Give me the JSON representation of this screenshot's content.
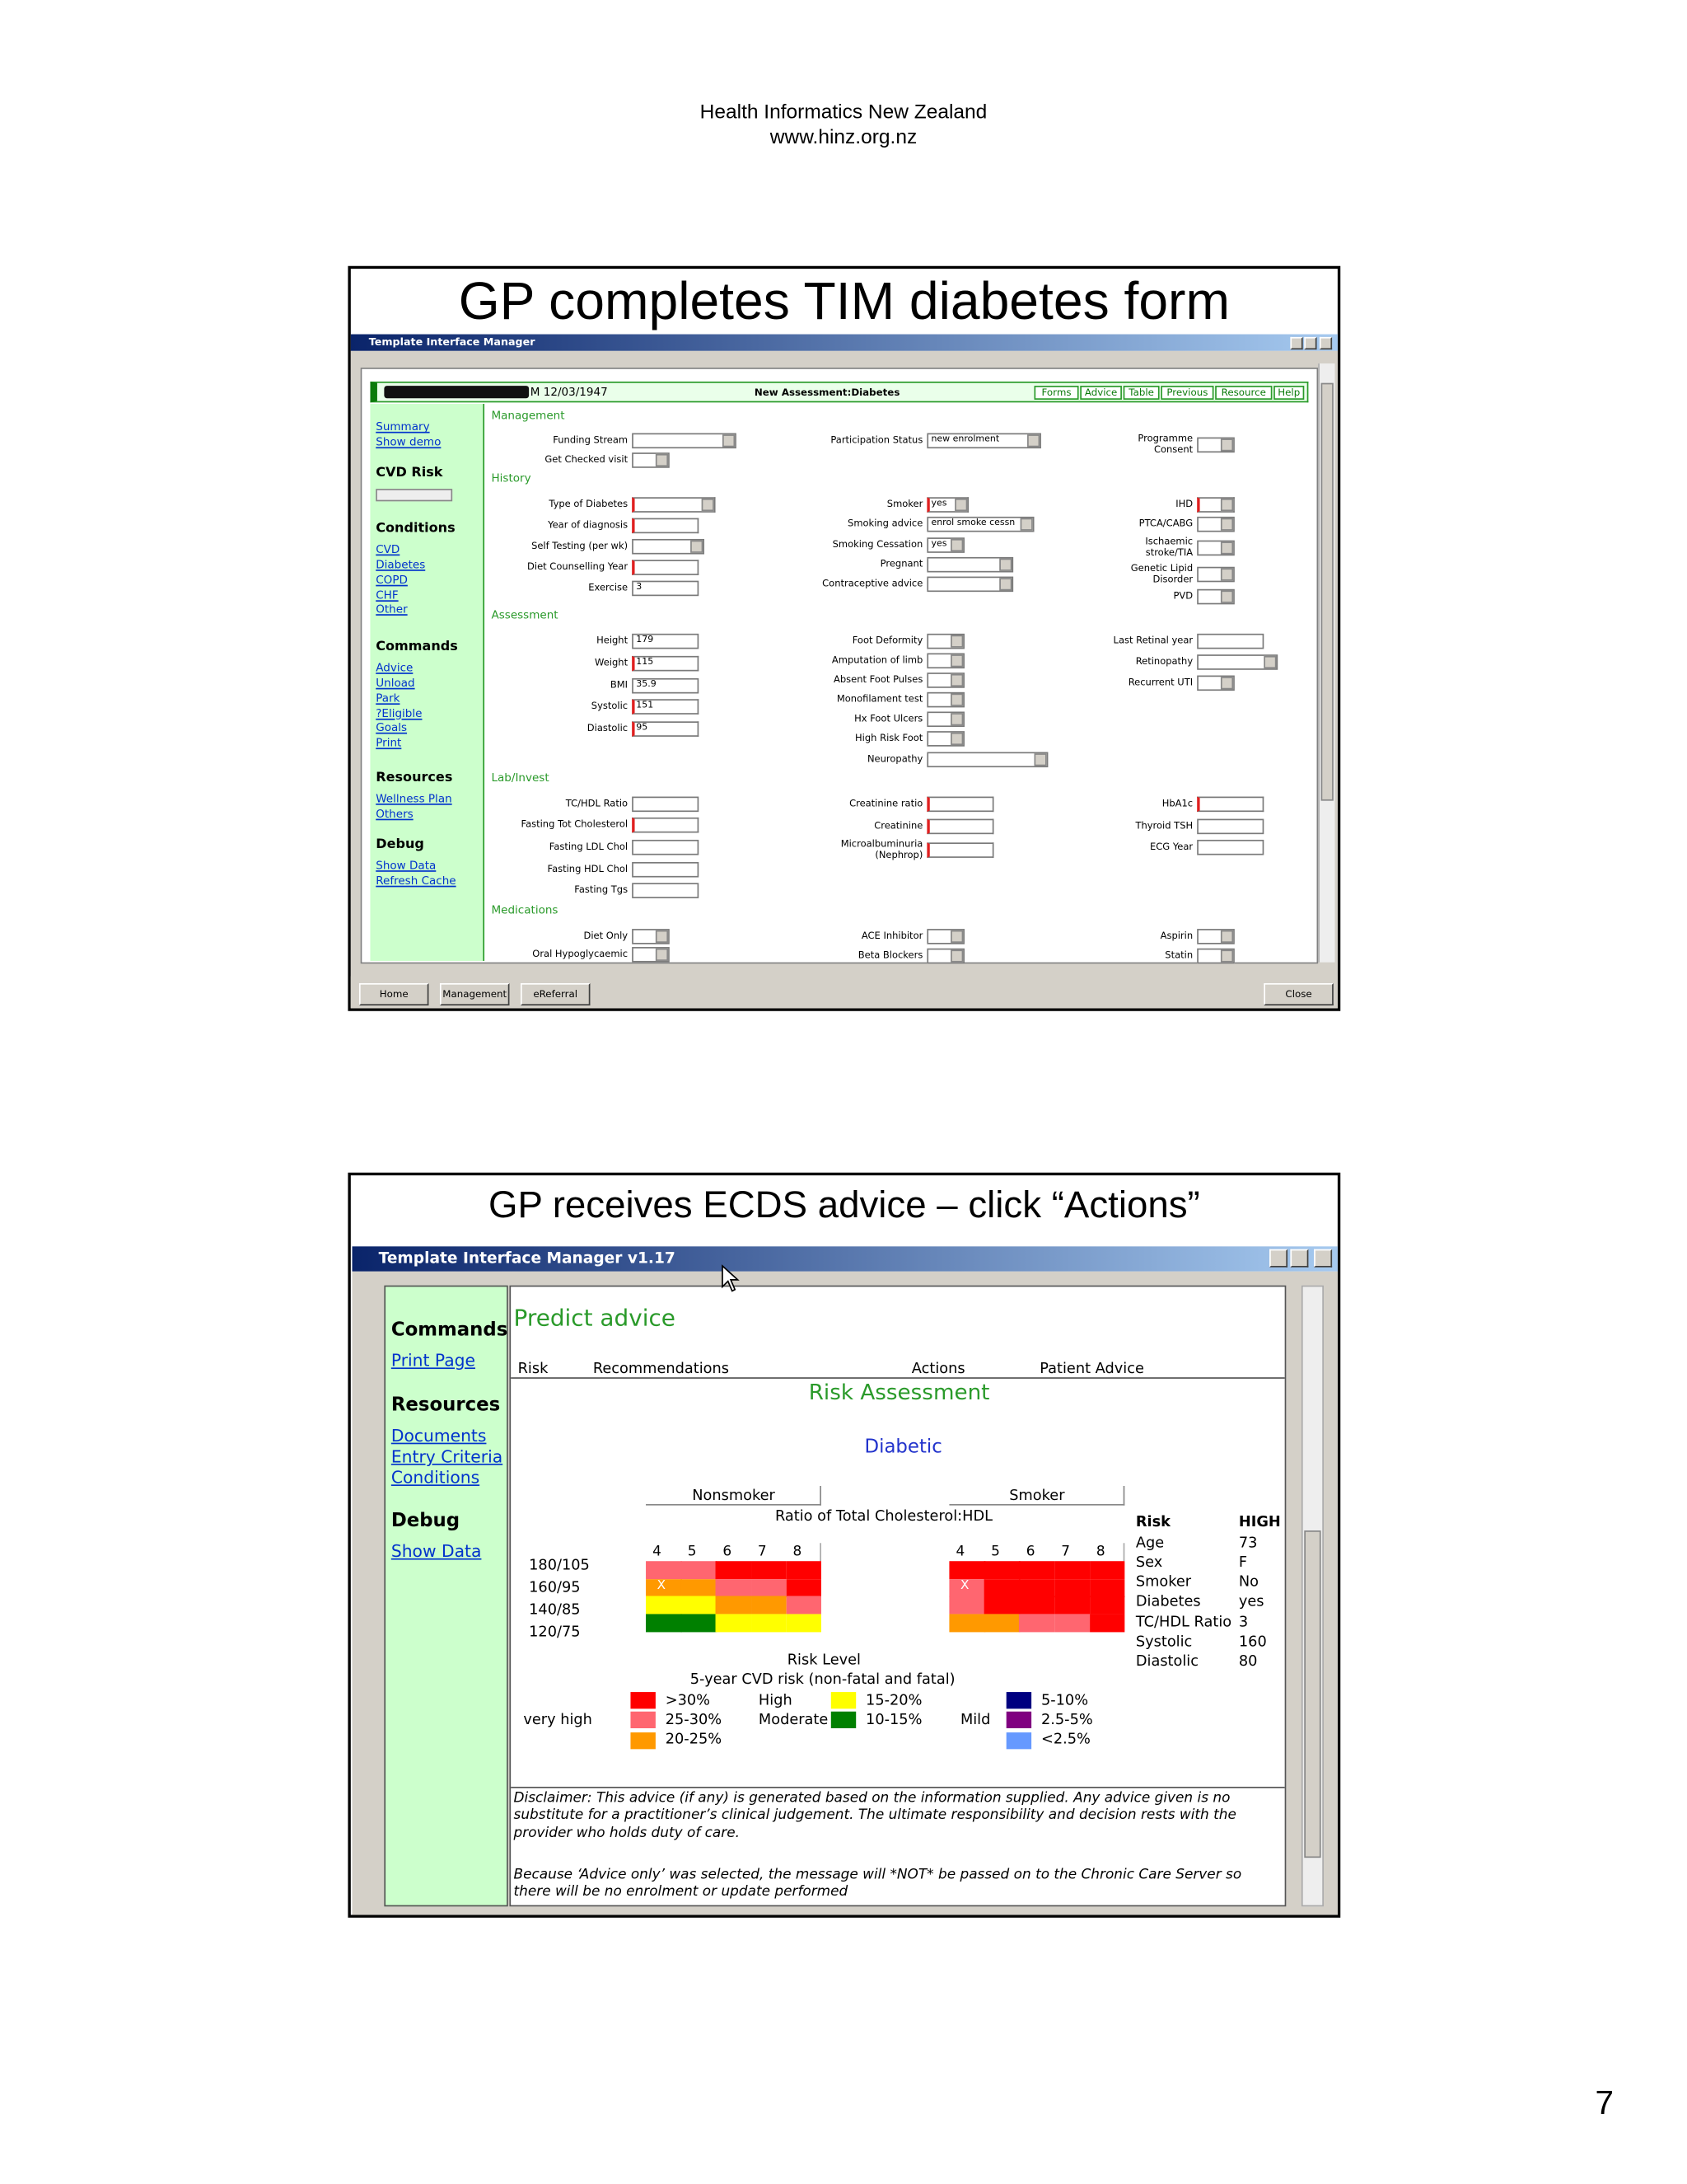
{
  "header": {
    "line1": "Health Informatics New Zealand",
    "line2": "www.hinz.org.nz"
  },
  "page_number": "7",
  "slide1": {
    "title": "GP completes TIM diabetes form",
    "window_title": "Template Interface Manager",
    "patient": "M 12/03/1947",
    "assessment": "New Assessment:Diabetes",
    "tabs": [
      "Forms",
      "Advice",
      "Table",
      "Previous",
      "Resource",
      "Help"
    ],
    "sidebar": {
      "links": [
        "Summary",
        "Show demo"
      ],
      "sections": [
        {
          "heading": "CVD Risk"
        },
        {
          "heading": "Conditions",
          "links": [
            "CVD",
            "Diabetes",
            "COPD",
            "CHF",
            "Other"
          ]
        },
        {
          "heading": "Commands",
          "links": [
            "Advice",
            "Unload",
            "Park",
            "?Eligible",
            "Goals",
            "Print"
          ]
        },
        {
          "heading": "Resources",
          "links": [
            "Wellness Plan",
            "Others"
          ]
        },
        {
          "heading": "Debug",
          "links": [
            "Show Data",
            "Refresh Cache"
          ]
        }
      ]
    },
    "sections": [
      {
        "title": "Management",
        "columns": [
          [
            {
              "label": "Funding Stream"
            },
            {
              "label": "Get Checked visit"
            }
          ],
          [
            {
              "label": "Participation Status",
              "value": "new enrolment"
            }
          ],
          [
            {
              "label": "Programme Consent"
            }
          ]
        ]
      },
      {
        "title": "History",
        "columns": [
          [
            {
              "label": "Type of Diabetes"
            },
            {
              "label": "Year of diagnosis"
            },
            {
              "label": "Self Testing (per wk)"
            },
            {
              "label": "Diet Counselling Year"
            },
            {
              "label": "Exercise",
              "value": "3"
            }
          ],
          [
            {
              "label": "Smoker",
              "value": "yes"
            },
            {
              "label": "Smoking advice",
              "value": "enrol smoke cessn"
            },
            {
              "label": "Smoking Cessation",
              "value": "yes"
            },
            {
              "label": "Pregnant"
            },
            {
              "label": "Contraceptive advice"
            }
          ],
          [
            {
              "label": "IHD"
            },
            {
              "label": "PTCA/CABG"
            },
            {
              "label": "Ischaemic stroke/TIA"
            },
            {
              "label": "Genetic Lipid Disorder"
            },
            {
              "label": "PVD"
            }
          ]
        ]
      },
      {
        "title": "Assessment",
        "columns": [
          [
            {
              "label": "Height",
              "value": "179"
            },
            {
              "label": "Weight",
              "value": "115"
            },
            {
              "label": "BMI",
              "value": "35.9"
            },
            {
              "label": "Systolic",
              "value": "151"
            },
            {
              "label": "Diastolic",
              "value": "95"
            }
          ],
          [
            {
              "label": "Foot Deformity"
            },
            {
              "label": "Amputation of limb"
            },
            {
              "label": "Absent Foot Pulses"
            },
            {
              "label": "Monofilament test"
            },
            {
              "label": "Hx Foot Ulcers"
            },
            {
              "label": "High Risk Foot"
            },
            {
              "label": "Neuropathy"
            }
          ],
          [
            {
              "label": "Last Retinal year"
            },
            {
              "label": "Retinopathy"
            },
            {
              "label": "Recurrent UTI"
            }
          ]
        ]
      },
      {
        "title": "Lab/Invest",
        "columns": [
          [
            {
              "label": "TC/HDL Ratio"
            },
            {
              "label": "Fasting Tot Cholesterol"
            },
            {
              "label": "Fasting LDL Chol"
            },
            {
              "label": "Fasting HDL Chol"
            },
            {
              "label": "Fasting Tgs"
            }
          ],
          [
            {
              "label": "Creatinine ratio"
            },
            {
              "label": "Creatinine"
            },
            {
              "label": "Microalbuminuria (Nephrop)"
            }
          ],
          [
            {
              "label": "HbA1c"
            },
            {
              "label": "Thyroid TSH"
            },
            {
              "label": "ECG Year"
            }
          ]
        ]
      },
      {
        "title": "Medications",
        "columns": [
          [
            {
              "label": "Diet Only"
            },
            {
              "label": "Oral Hypoglycaemic"
            }
          ],
          [
            {
              "label": "ACE Inhibitor"
            },
            {
              "label": "Beta Blockers"
            }
          ],
          [
            {
              "label": "Aspirin"
            },
            {
              "label": "Statin"
            }
          ]
        ]
      }
    ],
    "buttons": [
      "Home",
      "Management",
      "eReferral"
    ],
    "close": "Close"
  },
  "slide2": {
    "title": "GP receives ECDS advice – click “Actions”",
    "window_title": "Template Interface Manager v1.17",
    "sidebar": {
      "sections": [
        {
          "heading": "Commands",
          "links": [
            "Print Page"
          ]
        },
        {
          "heading": "Resources",
          "links": [
            "Documents",
            "Entry Criteria",
            "Conditions"
          ]
        },
        {
          "heading": "Debug",
          "links": [
            "Show Data"
          ]
        }
      ]
    },
    "heading": "Predict advice",
    "tabs": [
      "Risk",
      "Recommendations",
      "Actions",
      "Patient Advice"
    ],
    "section_title": "Risk Assessment",
    "subtitle": "Diabetic",
    "x_axis_label": "Ratio of Total Cholesterol:HDL",
    "x_ticks": [
      "4",
      "5",
      "6",
      "7",
      "8"
    ],
    "row_labels": [
      "180/105",
      "160/95",
      "140/85",
      "120/75"
    ],
    "marker_text": "X",
    "grids": [
      {
        "label": "Nonsmoker",
        "marked": [
          1,
          0
        ],
        "colors": [
          [
            "#ff6670",
            "#ff6670",
            "#ff0000",
            "#ff0000",
            "#ff0000"
          ],
          [
            "#ff9900",
            "#ff9900",
            "#ff6670",
            "#ff6670",
            "#ff0000"
          ],
          [
            "#ffff00",
            "#ffff00",
            "#ff9900",
            "#ff9900",
            "#ff6670"
          ],
          [
            "#008000",
            "#008000",
            "#ffff00",
            "#ffff00",
            "#ffff00"
          ]
        ]
      },
      {
        "label": "Smoker",
        "marked": [
          1,
          0
        ],
        "colors": [
          [
            "#ff0000",
            "#ff0000",
            "#ff0000",
            "#ff0000",
            "#ff0000"
          ],
          [
            "#ff6670",
            "#ff0000",
            "#ff0000",
            "#ff0000",
            "#ff0000"
          ],
          [
            "#ff6670",
            "#ff0000",
            "#ff0000",
            "#ff0000",
            "#ff0000"
          ],
          [
            "#ff9900",
            "#ff9900",
            "#ff6670",
            "#ff6670",
            "#ff0000"
          ]
        ]
      }
    ],
    "risk_table": [
      [
        "Risk",
        "HIGH"
      ],
      [
        "Age",
        "73"
      ],
      [
        "Sex",
        "F"
      ],
      [
        "Smoker",
        "No"
      ],
      [
        "Diabetes",
        "yes"
      ],
      [
        "TC/HDL Ratio",
        "3"
      ],
      [
        "Systolic",
        "160"
      ],
      [
        "Diastolic",
        "80"
      ]
    ],
    "legend_title": "Risk Level",
    "legend_subtitle": "5-year CVD risk (non-fatal and fatal)",
    "legend": [
      {
        "label": "very high",
        "items": [
          {
            "label": ">30%",
            "color": "#ff0000"
          },
          {
            "label": "25-30%",
            "color": "#ff6670"
          },
          {
            "label": "20-25%",
            "color": "#ff9900"
          }
        ]
      },
      {
        "label": "High",
        "items": [
          {
            "label": "15-20%",
            "color": "#ffff00"
          }
        ]
      },
      {
        "label": "Moderate",
        "items": [
          {
            "label": "10-15%",
            "color": "#008000"
          }
        ]
      },
      {
        "label": "Mild",
        "items": [
          {
            "label": "5-10%",
            "color": "#000080"
          },
          {
            "label": "2.5-5%",
            "color": "#800080"
          },
          {
            "label": "<2.5%",
            "color": "#6699ff"
          }
        ]
      }
    ],
    "disclaimer": [
      "Disclaimer: This advice (if any) is generated based on the information supplied. Any advice given is no substitute for a practitioner’s clinical judgement. The ultimate responsibility and decision rests with the provider who holds duty of care.",
      "Because ‘Advice only’ was selected, the message will *NOT* be passed on to the Chronic Care Server so there will be no enrolment or update performed"
    ]
  }
}
